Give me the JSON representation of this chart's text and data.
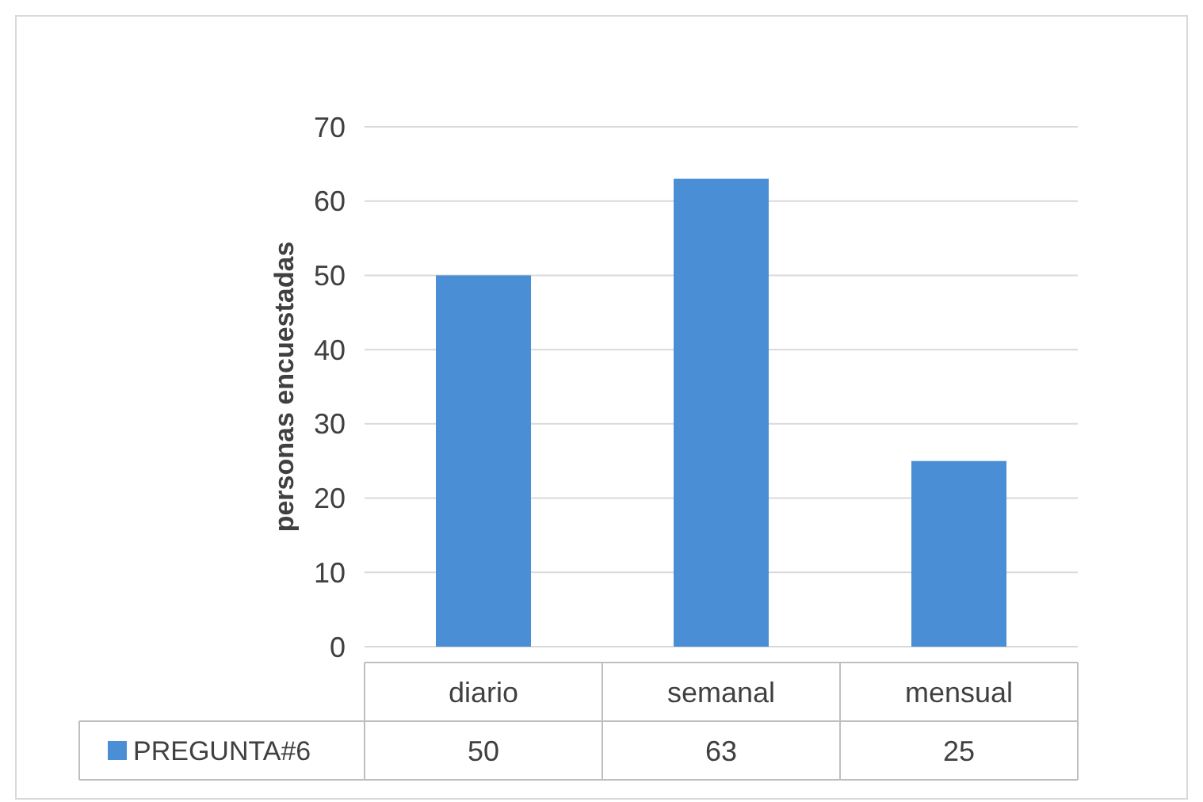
{
  "chart_data": {
    "type": "bar",
    "ylabel": "personas encuestadas",
    "categories": [
      "diario",
      "semanal",
      "mensual"
    ],
    "series": [
      {
        "name": "PREGUNTA#6",
        "color": "#4a8fd6",
        "values": [
          50,
          63,
          25
        ]
      }
    ],
    "ylim": [
      0,
      70
    ],
    "yticks": [
      0,
      10,
      20,
      30,
      40,
      50,
      60,
      70
    ],
    "grid": "y",
    "legend": "bottom",
    "data_labels": true
  }
}
